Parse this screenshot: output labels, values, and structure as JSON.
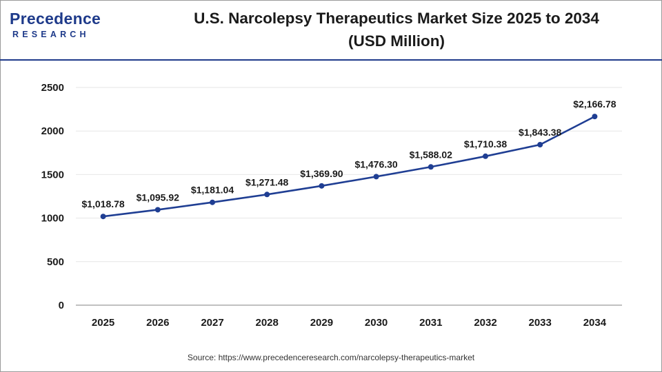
{
  "logo": {
    "name": "Precedence",
    "sub": "RESEARCH"
  },
  "colors": {
    "brand": "#1e3a8a",
    "line": "#1f3e93",
    "grid": "#e6e6e6",
    "text": "#1a1a1a"
  },
  "chart_data": {
    "type": "line",
    "title_lines": [
      "U.S. Narcolepsy Therapeutics Market Size 2025 to 2034",
      "(USD Million)"
    ],
    "xlabel": "",
    "ylabel": "",
    "categories": [
      "2025",
      "2026",
      "2027",
      "2028",
      "2029",
      "2030",
      "2031",
      "2032",
      "2033",
      "2034"
    ],
    "series": [
      {
        "values": [
          1018.78,
          1095.92,
          1181.04,
          1271.48,
          1369.9,
          1476.3,
          1588.02,
          1710.38,
          1843.38,
          2166.78
        ],
        "labels": [
          "$1,018.78",
          "$1,095.92",
          "$1,181.04",
          "$1,271.48",
          "$1,369.90",
          "$1,476.30",
          "$1,588.02",
          "$1,710.38",
          "$1,843.38",
          "$2,166.78"
        ]
      }
    ],
    "ylim": [
      0,
      2500
    ],
    "yticks": [
      "0",
      "500",
      "1000",
      "1500",
      "2000",
      "2500"
    ],
    "grid": true,
    "legend": "none"
  },
  "source": "Source: https://www.precedenceresearch.com/narcolepsy-therapeutics-market"
}
